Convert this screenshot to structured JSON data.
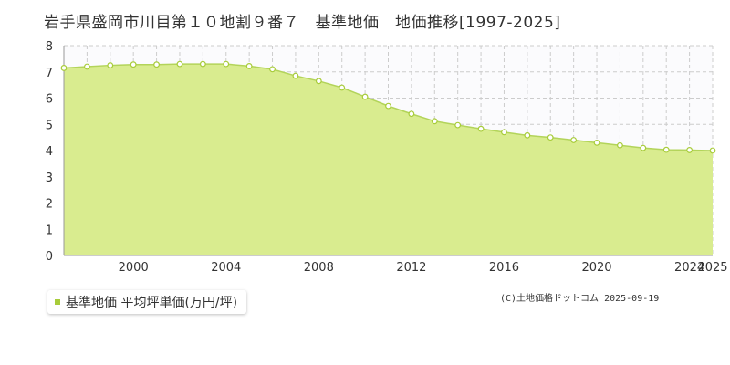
{
  "title": "岩手県盛岡市川目第１０地割９番７　基準地価　地価推移[1997-2025]",
  "legend_label": "基準地価 平均坪単価(万円/坪)",
  "credit": "(C)土地価格ドットコム 2025-09-19",
  "colors": {
    "fill": "#d9ec8f",
    "line": "#b3d45a",
    "marker": "#a8cc3a",
    "grid": "#cccccc"
  },
  "chart_data": {
    "type": "area",
    "title": "岩手県盛岡市川目第１０地割９番７　基準地価　地価推移[1997-2025]",
    "xlabel": "",
    "ylabel": "",
    "x": [
      1997,
      1998,
      1999,
      2000,
      2001,
      2002,
      2003,
      2004,
      2005,
      2006,
      2007,
      2008,
      2009,
      2010,
      2011,
      2012,
      2013,
      2014,
      2015,
      2016,
      2017,
      2018,
      2019,
      2020,
      2021,
      2022,
      2023,
      2024,
      2025
    ],
    "series": [
      {
        "name": "基準地価 平均坪単価(万円/坪)",
        "values": [
          7.15,
          7.2,
          7.25,
          7.28,
          7.28,
          7.3,
          7.3,
          7.3,
          7.22,
          7.1,
          6.85,
          6.65,
          6.4,
          6.05,
          5.7,
          5.4,
          5.12,
          4.97,
          4.83,
          4.7,
          4.58,
          4.5,
          4.4,
          4.3,
          4.2,
          4.1,
          4.03,
          4.02,
          4.0
        ]
      }
    ],
    "xlim": [
      1997,
      2025
    ],
    "ylim": [
      0,
      8
    ],
    "yticks": [
      "0",
      "1",
      "2",
      "3",
      "4",
      "5",
      "6",
      "7",
      "8"
    ],
    "xticks": [
      {
        "value": 2000,
        "label": "2000"
      },
      {
        "value": 2004,
        "label": "2004"
      },
      {
        "value": 2008,
        "label": "2008"
      },
      {
        "value": 2012,
        "label": "2012"
      },
      {
        "value": 2016,
        "label": "2016"
      },
      {
        "value": 2020,
        "label": "2020"
      },
      {
        "value": 2024,
        "label": "2024"
      },
      {
        "value": 2025,
        "label": "2025"
      }
    ],
    "grid": true,
    "legend": "bottom-left"
  }
}
